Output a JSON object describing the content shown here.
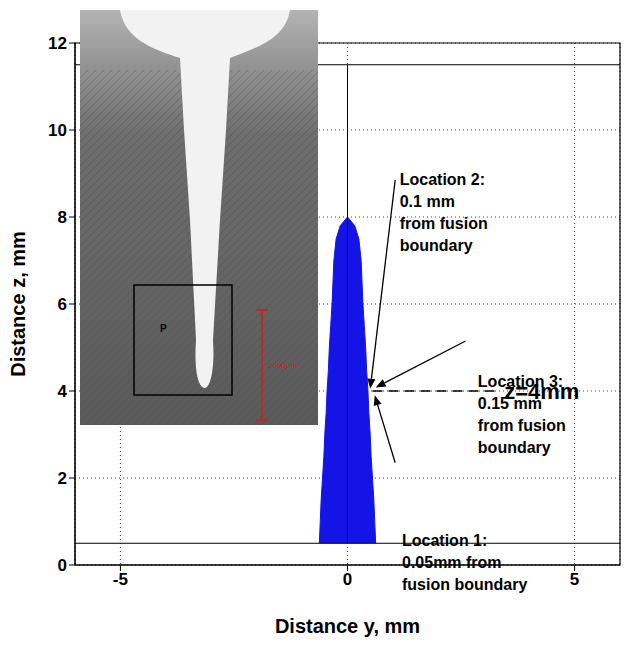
{
  "chart_data": {
    "type": "area",
    "xlabel": "Distance y, mm",
    "ylabel": "Distance z, mm",
    "xlim": [
      -6,
      6
    ],
    "xticks": [
      -5,
      0,
      5
    ],
    "ylim": [
      0,
      12
    ],
    "yticks": [
      0,
      2,
      4,
      6,
      8,
      10,
      12
    ],
    "grid": true,
    "color": "#1414e6",
    "z": [
      0.5,
      1,
      1.5,
      2,
      2.5,
      3,
      3.5,
      4,
      4.5,
      5,
      5.5,
      6,
      6.5,
      7,
      7.5,
      7.8,
      8
    ],
    "y_low": [
      -0.62,
      -0.6,
      -0.58,
      -0.55,
      -0.52,
      -0.5,
      -0.47,
      -0.45,
      -0.42,
      -0.4,
      -0.37,
      -0.34,
      -0.32,
      -0.3,
      -0.25,
      -0.16,
      0
    ],
    "y_high": [
      0.62,
      0.6,
      0.58,
      0.55,
      0.52,
      0.5,
      0.47,
      0.45,
      0.42,
      0.4,
      0.37,
      0.34,
      0.32,
      0.3,
      0.25,
      0.16,
      0
    ],
    "hlines": [
      0.5,
      11.5
    ],
    "vlines": [
      0
    ],
    "marker_line": {
      "text": "z=4mm",
      "line": [
        [
          0.55,
          4
        ],
        [
          3.3,
          4
        ]
      ],
      "text_at": [
        3.45,
        4
      ]
    },
    "annotations": [
      {
        "lines": [
          "Location 1:",
          "0.05mm from",
          "fusion boundary"
        ],
        "text_at": [
          1.2,
          0.7
        ],
        "arrow": [
          [
            1.05,
            2.35
          ],
          [
            0.6,
            3.9
          ]
        ]
      },
      {
        "lines": [
          "Location 2:",
          "0.1 mm",
          "from fusion",
          "boundary"
        ],
        "text_at": [
          1.15,
          9.0
        ],
        "arrow": [
          [
            1.05,
            8.85
          ],
          [
            0.5,
            4.05
          ]
        ]
      },
      {
        "lines": [
          "Location 3:",
          "0.15 mm",
          "from fusion",
          "boundary"
        ],
        "text_at": [
          2.87,
          4.35
        ],
        "arrow": [
          [
            2.6,
            5.15
          ],
          [
            0.62,
            4.08
          ]
        ]
      }
    ],
    "inset": {
      "labels": [
        "P",
        "2000μm"
      ]
    }
  }
}
